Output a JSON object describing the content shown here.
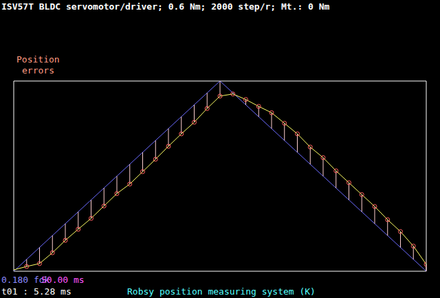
{
  "chart_data": {
    "type": "line",
    "title": "ISV57T BLDC servomotor/driver; 0.6 Nm; 2000 step/r; Mt.: 0 Nm",
    "annotations": [
      "Position",
      "errors",
      "0.180 fok",
      "50.00 ms",
      "t01 : 5.28 ms",
      "Robsy position measuring system (K)"
    ],
    "xlim": [
      0,
      400
    ],
    "xticks": [
      0,
      50,
      100,
      150,
      200,
      250,
      300,
      350,
      400
    ],
    "ylim": [
      0,
      0.72
    ],
    "yticks": [
      0,
      0.18,
      0.36,
      0.54,
      0.72
    ],
    "grid": true,
    "tick_labels": false,
    "series": [
      {
        "type": "line",
        "color": "#6b6bff",
        "x": [
          0,
          200,
          400
        ],
        "values": [
          0,
          0.72,
          0
        ]
      },
      {
        "type": "line",
        "color": "#ffff66",
        "x": [
          0,
          12.5,
          25,
          37.5,
          50,
          62.5,
          75,
          87.5,
          100,
          112.5,
          125,
          137.5,
          150,
          162.5,
          175,
          187.5,
          200,
          212.5,
          225,
          237.5,
          250,
          262.5,
          275,
          287.5,
          300,
          312.5,
          325,
          337.5,
          350,
          362.5,
          375,
          387.5,
          400
        ],
        "values": [
          0.005,
          0.018,
          0.029,
          0.07,
          0.117,
          0.159,
          0.2,
          0.247,
          0.294,
          0.33,
          0.377,
          0.424,
          0.473,
          0.52,
          0.564,
          0.616,
          0.663,
          0.671,
          0.65,
          0.624,
          0.6,
          0.56,
          0.52,
          0.47,
          0.43,
          0.38,
          0.335,
          0.29,
          0.245,
          0.195,
          0.15,
          0.095,
          0.026
        ]
      },
      {
        "type": "scatter",
        "color": "#ff6060",
        "marker": "circle",
        "x": [
          12.5,
          25,
          37.5,
          50,
          62.5,
          75,
          87.5,
          100,
          112.5,
          125,
          137.5,
          150,
          162.5,
          175,
          187.5,
          200,
          212.5,
          225,
          237.5,
          250,
          262.5,
          275,
          287.5,
          300,
          312.5,
          325,
          337.5,
          350,
          362.5,
          375,
          387.5,
          400
        ],
        "values": [
          0.018,
          0.029,
          0.07,
          0.117,
          0.159,
          0.2,
          0.247,
          0.294,
          0.33,
          0.377,
          0.424,
          0.473,
          0.52,
          0.564,
          0.616,
          0.663,
          0.671,
          0.65,
          0.624,
          0.6,
          0.56,
          0.52,
          0.47,
          0.43,
          0.38,
          0.335,
          0.29,
          0.245,
          0.195,
          0.15,
          0.095,
          0.026
        ],
        "errors": [
          0.027,
          0.061,
          0.065,
          0.063,
          0.066,
          0.07,
          0.068,
          0.066,
          0.075,
          0.073,
          0.071,
          0.067,
          0.065,
          0.066,
          0.059,
          0.057,
          0.004,
          -0.02,
          -0.039,
          -0.06,
          -0.065,
          -0.07,
          -0.065,
          -0.07,
          -0.065,
          -0.065,
          -0.065,
          -0.065,
          -0.06,
          -0.06,
          -0.05,
          -0.026
        ]
      }
    ]
  }
}
